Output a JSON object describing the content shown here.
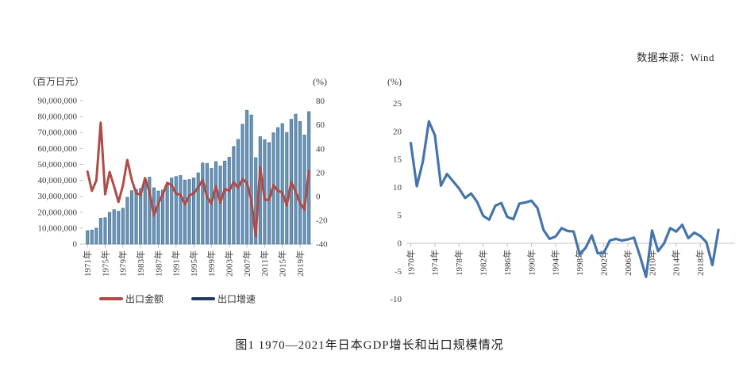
{
  "source_note": "数据来源：Wind",
  "caption": "图1  1970—2021年日本GDP增长和出口规模情况",
  "colors": {
    "export_amount_red": "#b04b46",
    "export_bars_fill": "#6d94b4",
    "export_bars_stroke": "#3f6e99",
    "legend_navy": "#1f3a5c",
    "gdp_line_blue": "#4574ab",
    "axis_gray": "#c6c6c6",
    "text_gray": "#3d3d3d"
  },
  "chart_data": [
    {
      "type": "bar",
      "subtype": "bar+line combo",
      "unit_left": "（百万日元）",
      "unit_right": "(%)",
      "legend": [
        {
          "label": "出口金额",
          "swatch_color": "#b04b46",
          "swatch": "line"
        },
        {
          "label": "出口增速",
          "swatch_color": "#1f3a5c",
          "swatch": "line"
        }
      ],
      "years": [
        1971,
        1972,
        1973,
        1974,
        1975,
        1976,
        1977,
        1978,
        1979,
        1980,
        1981,
        1982,
        1983,
        1984,
        1985,
        1986,
        1987,
        1988,
        1989,
        1990,
        1991,
        1992,
        1993,
        1994,
        1995,
        1996,
        1997,
        1998,
        1999,
        2000,
        2001,
        2002,
        2003,
        2004,
        2005,
        2006,
        2007,
        2008,
        2009,
        2010,
        2011,
        2012,
        2013,
        2014,
        2015,
        2016,
        2017,
        2018,
        2019,
        2020,
        2021
      ],
      "bar_values_million_jpy": [
        8400000,
        8800000,
        10000000,
        16200000,
        16500000,
        19900000,
        21600000,
        20600000,
        22500000,
        29400000,
        33500000,
        34400000,
        34900000,
        40300000,
        42000000,
        35300000,
        33300000,
        33900000,
        37800000,
        41500000,
        42400000,
        43000000,
        40200000,
        40500000,
        41500000,
        44700000,
        50900000,
        50600000,
        47500000,
        51700000,
        49000000,
        52100000,
        54500000,
        61200000,
        65700000,
        75200000,
        83900000,
        81000000,
        54200000,
        67400000,
        65500000,
        63700000,
        69800000,
        73100000,
        75600000,
        70000000,
        78300000,
        81500000,
        76900000,
        68400000,
        83100000
      ],
      "line_values_pct": [
        20.9,
        4.8,
        13.6,
        62.0,
        1.9,
        20.6,
        8.5,
        -4.6,
        9.2,
        30.7,
        13.9,
        2.7,
        1.5,
        15.5,
        4.0,
        -15.9,
        -5.7,
        1.8,
        11.5,
        9.6,
        2.3,
        1.5,
        -6.6,
        0.9,
        2.6,
        7.7,
        13.9,
        -0.6,
        -6.1,
        8.6,
        -5.2,
        6.4,
        4.7,
        12.1,
        7.3,
        14.6,
        11.5,
        -3.5,
        -33.1,
        24.4,
        -2.7,
        -2.7,
        9.5,
        4.8,
        3.4,
        -7.4,
        11.8,
        4.1,
        -5.6,
        -11.1,
        21.5
      ],
      "ylim_left": [
        0,
        90000000
      ],
      "yticks_left_values": [
        90000000,
        80000000,
        70000000,
        60000000,
        50000000,
        40000000,
        30000000,
        20000000,
        10000000,
        0
      ],
      "yticks_left_labels": [
        "90,000,000",
        "80,000,000",
        "70,000,000",
        "60,000,000",
        "50,000,000",
        "40,000,000",
        "30,000,000",
        "20,000,000",
        "10,000,000",
        "0"
      ],
      "ylim_right": [
        -40,
        80
      ],
      "yticks_right": [
        80,
        60,
        40,
        20,
        0,
        -20,
        -40
      ],
      "x_tick_labels": [
        "1971年",
        "1975年",
        "1979年",
        "1983年",
        "1987年",
        "1991年",
        "1995年",
        "1999年",
        "2003年",
        "2007年",
        "2011年",
        "2015年",
        "2019年"
      ],
      "grid": false,
      "legend_position": "bottom"
    },
    {
      "type": "line",
      "unit": "(%)",
      "years": [
        1970,
        1971,
        1972,
        1973,
        1974,
        1975,
        1976,
        1977,
        1978,
        1979,
        1980,
        1981,
        1982,
        1983,
        1984,
        1985,
        1986,
        1987,
        1988,
        1989,
        1990,
        1991,
        1992,
        1993,
        1994,
        1995,
        1996,
        1997,
        1998,
        1999,
        2000,
        2001,
        2002,
        2003,
        2004,
        2005,
        2006,
        2007,
        2008,
        2009,
        2010,
        2011,
        2012,
        2013,
        2014,
        2015,
        2016,
        2017,
        2018,
        2019,
        2020,
        2021
      ],
      "values": [
        17.9,
        10.2,
        14.6,
        21.8,
        19.3,
        10.3,
        12.4,
        11.1,
        9.8,
        8.1,
        8.9,
        7.4,
        4.9,
        4.2,
        6.7,
        7.2,
        4.7,
        4.3,
        7.1,
        7.3,
        7.6,
        6.3,
        2.4,
        0.8,
        1.2,
        2.7,
        2.2,
        2.1,
        -2.0,
        -0.8,
        1.4,
        -1.8,
        -1.7,
        0.5,
        0.8,
        0.5,
        0.7,
        1.0,
        -2.3,
        -6.0,
        2.3,
        -1.4,
        0.0,
        2.7,
        2.1,
        3.3,
        0.9,
        1.9,
        1.3,
        0.2,
        -3.9,
        2.4
      ],
      "ylim": [
        -10,
        25
      ],
      "yticks": [
        25,
        20,
        15,
        10,
        5,
        0,
        -5,
        -10
      ],
      "x_tick_labels": [
        "1970年",
        "1974年",
        "1978年",
        "1982年",
        "1986年",
        "1990年",
        "1994年",
        "1998年",
        "2002年",
        "2006年",
        "2010年",
        "2014年",
        "2018年"
      ],
      "grid": false,
      "legend_position": "none"
    }
  ]
}
